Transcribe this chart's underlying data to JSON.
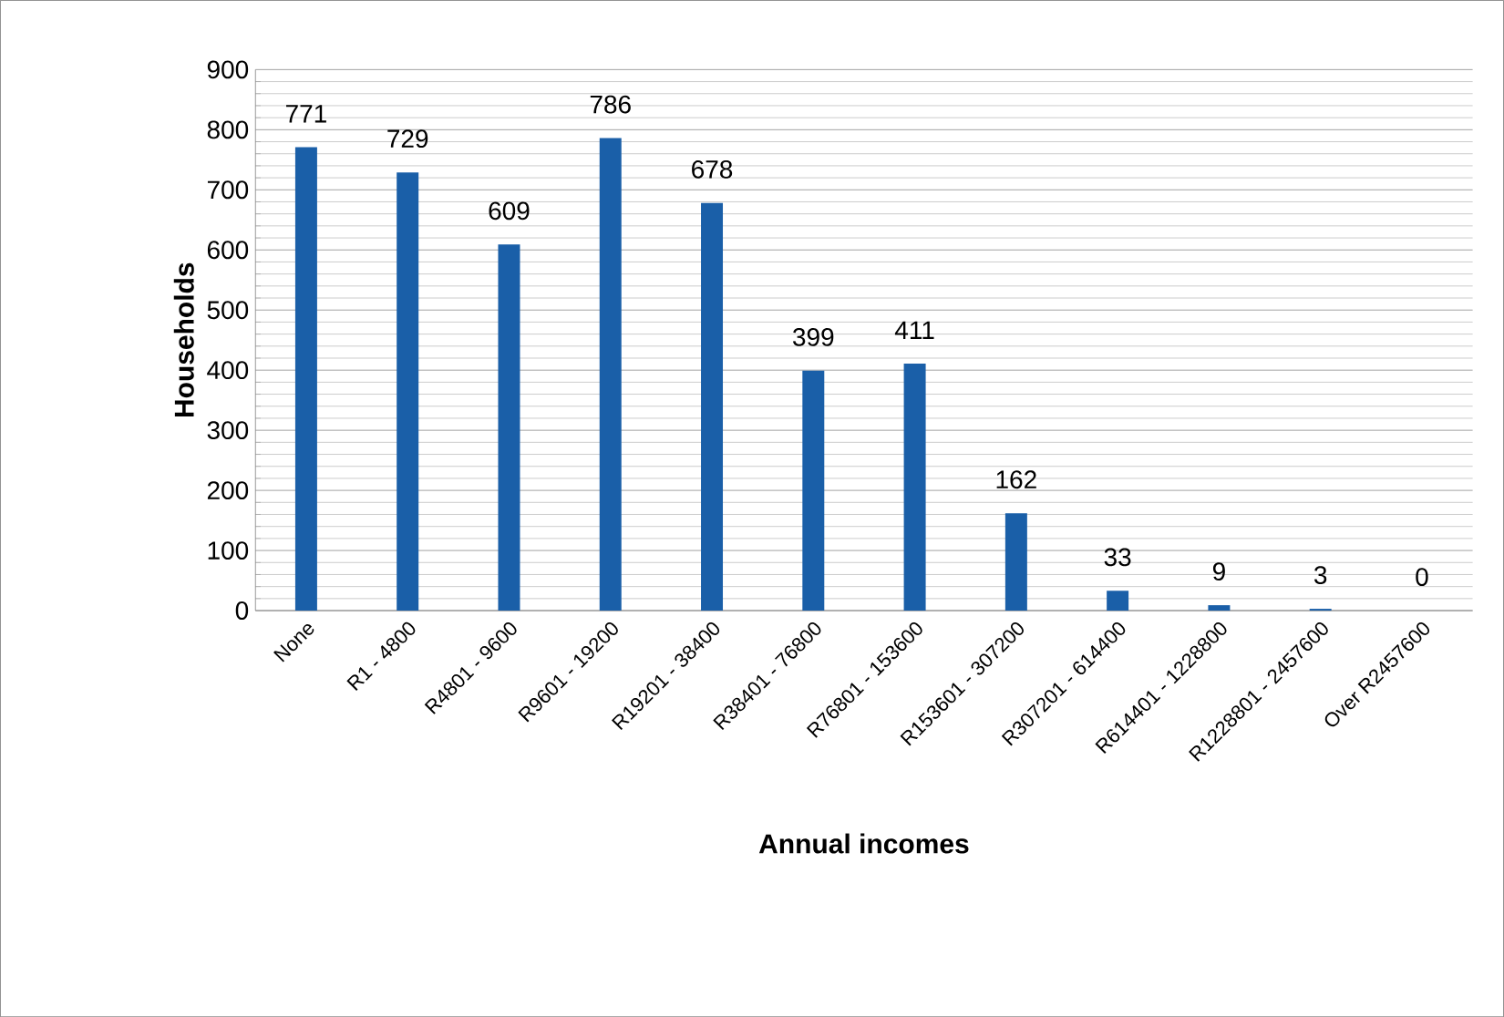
{
  "chart_data": {
    "type": "bar",
    "xlabel": "Annual incomes",
    "ylabel": "Households",
    "categories": [
      "None",
      "R1 - 4800",
      "R4801 - 9600",
      "R9601 - 19200",
      "R19201 - 38400",
      "R38401 - 76800",
      "R76801 - 153600",
      "R153601 - 307200",
      "R307201 - 614400",
      "R614401 - 1228800",
      "R1228801 - 2457600",
      "Over R2457600"
    ],
    "values": [
      771,
      729,
      609,
      786,
      678,
      399,
      411,
      162,
      33,
      9,
      3,
      0
    ],
    "color": "#1a5fa8",
    "ylim": [
      0,
      900
    ],
    "yticks": [
      0,
      100,
      200,
      300,
      400,
      500,
      600,
      700,
      800,
      900
    ],
    "grid": "y",
    "data_labels": true
  }
}
